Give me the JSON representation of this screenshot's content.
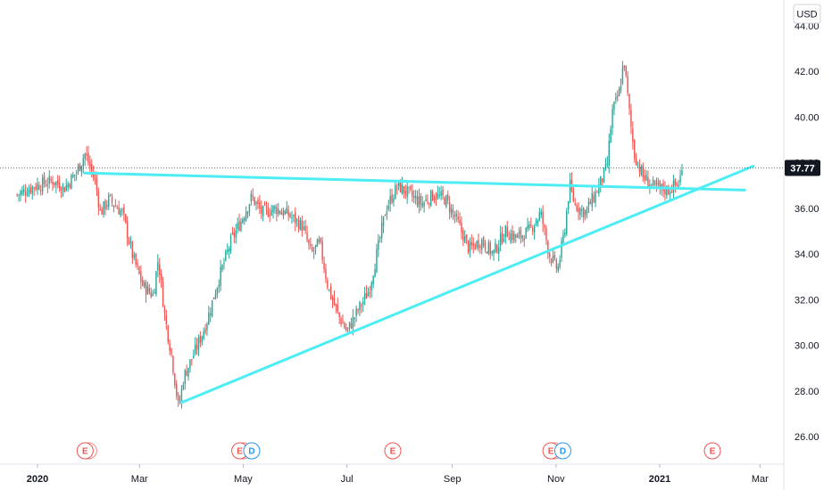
{
  "currency_label": "USD",
  "last_price_label": "37.77",
  "colors": {
    "up": "#26a69a",
    "down": "#ef5350",
    "trendline": "#4dedf5",
    "event_earnings": "#ef5350",
    "event_dividend": "#2196f3",
    "axis_text": "#131722",
    "grid": "#e0e3eb",
    "price_tag_bg": "#131722"
  },
  "chart_data": {
    "type": "candlestick",
    "title": "",
    "xlabel": "",
    "ylabel": "",
    "currency": "USD",
    "y_ticks": [
      "26.00",
      "28.00",
      "30.00",
      "32.00",
      "34.00",
      "36.00",
      "38.00",
      "40.00",
      "42.00",
      "44.00"
    ],
    "x_ticks": [
      "2020",
      "Mar",
      "May",
      "Jul",
      "Sep",
      "Nov",
      "2021",
      "Mar"
    ],
    "ylim": [
      24.5,
      45.2
    ],
    "last_price": 37.77,
    "close_path": [
      [
        "2019-12-20",
        36.6
      ],
      [
        "2019-12-31",
        37.0
      ],
      [
        "2020-01-10",
        37.2
      ],
      [
        "2020-01-17",
        36.9
      ],
      [
        "2020-01-24",
        37.6
      ],
      [
        "2020-01-29",
        38.4
      ],
      [
        "2020-02-04",
        37.2
      ],
      [
        "2020-02-07",
        35.8
      ],
      [
        "2020-02-12",
        36.4
      ],
      [
        "2020-02-20",
        35.8
      ],
      [
        "2020-02-26",
        33.9
      ],
      [
        "2020-03-03",
        32.6
      ],
      [
        "2020-03-09",
        32.2
      ],
      [
        "2020-03-12",
        33.8
      ],
      [
        "2020-03-16",
        31.2
      ],
      [
        "2020-03-20",
        29.5
      ],
      [
        "2020-03-24",
        27.2
      ],
      [
        "2020-03-27",
        28.6
      ],
      [
        "2020-04-03",
        29.8
      ],
      [
        "2020-04-09",
        30.9
      ],
      [
        "2020-04-17",
        33.0
      ],
      [
        "2020-04-24",
        34.6
      ],
      [
        "2020-04-30",
        35.5
      ],
      [
        "2020-05-06",
        36.5
      ],
      [
        "2020-05-12",
        35.8
      ],
      [
        "2020-05-20",
        36.0
      ],
      [
        "2020-05-28",
        35.7
      ],
      [
        "2020-06-05",
        35.2
      ],
      [
        "2020-06-10",
        34.0
      ],
      [
        "2020-06-15",
        34.5
      ],
      [
        "2020-06-20",
        32.5
      ],
      [
        "2020-06-26",
        31.3
      ],
      [
        "2020-07-01",
        30.6
      ],
      [
        "2020-07-08",
        31.6
      ],
      [
        "2020-07-14",
        32.4
      ],
      [
        "2020-07-20",
        34.5
      ],
      [
        "2020-07-24",
        36.0
      ],
      [
        "2020-07-31",
        37.0
      ],
      [
        "2020-08-07",
        36.6
      ],
      [
        "2020-08-14",
        36.2
      ],
      [
        "2020-08-21",
        36.6
      ],
      [
        "2020-08-28",
        36.4
      ],
      [
        "2020-09-04",
        35.4
      ],
      [
        "2020-09-11",
        34.2
      ],
      [
        "2020-09-18",
        34.6
      ],
      [
        "2020-09-25",
        34.0
      ],
      [
        "2020-10-02",
        35.0
      ],
      [
        "2020-10-09",
        34.7
      ],
      [
        "2020-10-16",
        35.0
      ],
      [
        "2020-10-23",
        35.8
      ],
      [
        "2020-10-28",
        34.0
      ],
      [
        "2020-11-02",
        33.3
      ],
      [
        "2020-11-06",
        35.0
      ],
      [
        "2020-11-09",
        37.0
      ],
      [
        "2020-11-12",
        36.2
      ],
      [
        "2020-11-18",
        35.8
      ],
      [
        "2020-11-24",
        36.6
      ],
      [
        "2020-12-01",
        37.8
      ],
      [
        "2020-12-04",
        40.2
      ],
      [
        "2020-12-08",
        41.0
      ],
      [
        "2020-12-11",
        42.5
      ],
      [
        "2020-12-14",
        40.3
      ],
      [
        "2020-12-17",
        38.4
      ],
      [
        "2020-12-22",
        37.4
      ],
      [
        "2020-12-29",
        36.9
      ],
      [
        "2021-01-06",
        36.8
      ],
      [
        "2021-01-12",
        37.1
      ],
      [
        "2021-01-15",
        37.77
      ]
    ],
    "trendlines": [
      {
        "from": [
          "2020-01-29",
          37.55
        ],
        "to": [
          "2021-02-20",
          36.8
        ]
      },
      {
        "from": [
          "2020-03-26",
          27.5
        ],
        "to": [
          "2021-02-25",
          37.85
        ]
      }
    ],
    "events": [
      {
        "type": "E",
        "date": "2020-01-29"
      },
      {
        "type": "E",
        "date": "2020-04-29"
      },
      {
        "type": "D",
        "date": "2020-05-06"
      },
      {
        "type": "E",
        "date": "2020-07-28"
      },
      {
        "type": "E",
        "date": "2020-10-29"
      },
      {
        "type": "D",
        "date": "2020-11-05"
      },
      {
        "type": "E",
        "date": "2021-02-01"
      }
    ]
  }
}
